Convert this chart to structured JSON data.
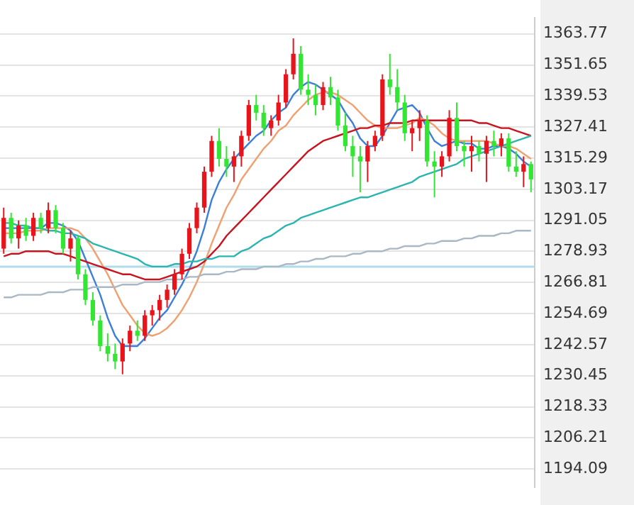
{
  "chart_data": {
    "type": "candlestick",
    "categories": [
      null,
      null,
      null,
      null,
      null,
      null,
      null,
      null,
      null,
      null,
      null,
      null,
      null,
      null,
      null,
      null,
      null,
      null,
      null,
      null,
      null,
      null,
      null,
      null,
      null,
      null,
      null,
      null,
      null,
      null,
      null,
      null,
      null,
      null,
      null,
      null,
      null,
      null,
      null,
      null,
      null,
      null,
      null,
      null,
      null,
      null,
      null,
      null,
      null,
      null,
      null,
      null,
      null,
      null,
      null,
      null,
      null,
      null,
      null,
      null,
      null,
      null,
      null,
      null,
      null,
      null,
      null,
      null,
      null,
      null,
      null,
      null
    ],
    "ohlc": [
      [
        1280,
        1296,
        1278,
        1292
      ],
      [
        1292,
        1294,
        1282,
        1284
      ],
      [
        1284,
        1291,
        1280,
        1289
      ],
      [
        1289,
        1292,
        1283,
        1285
      ],
      [
        1285,
        1294,
        1283,
        1292
      ],
      [
        1292,
        1294,
        1286,
        1288
      ],
      [
        1288,
        1298,
        1286,
        1295
      ],
      [
        1295,
        1297,
        1286,
        1288
      ],
      [
        1288,
        1290,
        1278,
        1280
      ],
      [
        1280,
        1287,
        1275,
        1284
      ],
      [
        1284,
        1285,
        1268,
        1270
      ],
      [
        1270,
        1272,
        1258,
        1260
      ],
      [
        1260,
        1263,
        1250,
        1252
      ],
      [
        1252,
        1254,
        1240,
        1242
      ],
      [
        1242,
        1247,
        1236,
        1239
      ],
      [
        1239,
        1243,
        1233,
        1236
      ],
      [
        1236,
        1245,
        1231,
        1243
      ],
      [
        1243,
        1250,
        1240,
        1248
      ],
      [
        1248,
        1252,
        1244,
        1246
      ],
      [
        1246,
        1256,
        1244,
        1254
      ],
      [
        1254,
        1258,
        1250,
        1256
      ],
      [
        1256,
        1262,
        1252,
        1260
      ],
      [
        1260,
        1266,
        1257,
        1264
      ],
      [
        1264,
        1272,
        1262,
        1270
      ],
      [
        1270,
        1280,
        1268,
        1278
      ],
      [
        1278,
        1290,
        1276,
        1288
      ],
      [
        1288,
        1298,
        1286,
        1296
      ],
      [
        1296,
        1312,
        1294,
        1310
      ],
      [
        1310,
        1324,
        1308,
        1322
      ],
      [
        1322,
        1327,
        1312,
        1315
      ],
      [
        1315,
        1320,
        1308,
        1312
      ],
      [
        1312,
        1318,
        1306,
        1316
      ],
      [
        1316,
        1326,
        1312,
        1324
      ],
      [
        1324,
        1338,
        1322,
        1336
      ],
      [
        1336,
        1340,
        1330,
        1333
      ],
      [
        1333,
        1336,
        1324,
        1327
      ],
      [
        1327,
        1332,
        1324,
        1330
      ],
      [
        1330,
        1340,
        1328,
        1337
      ],
      [
        1337,
        1350,
        1335,
        1348
      ],
      [
        1348,
        1362,
        1346,
        1356
      ],
      [
        1356,
        1359,
        1340,
        1342
      ],
      [
        1342,
        1348,
        1336,
        1340
      ],
      [
        1340,
        1344,
        1332,
        1336
      ],
      [
        1336,
        1345,
        1334,
        1343
      ],
      [
        1343,
        1347,
        1336,
        1339
      ],
      [
        1339,
        1342,
        1326,
        1328
      ],
      [
        1328,
        1333,
        1318,
        1320
      ],
      [
        1320,
        1324,
        1308,
        1316
      ],
      [
        1316,
        1320,
        1302,
        1314
      ],
      [
        1314,
        1322,
        1306,
        1320
      ],
      [
        1320,
        1326,
        1318,
        1324
      ],
      [
        1324,
        1348,
        1322,
        1346
      ],
      [
        1346,
        1356,
        1340,
        1343
      ],
      [
        1343,
        1350,
        1334,
        1337
      ],
      [
        1337,
        1340,
        1322,
        1325
      ],
      [
        1325,
        1330,
        1318,
        1327
      ],
      [
        1327,
        1334,
        1322,
        1330
      ],
      [
        1330,
        1332,
        1312,
        1314
      ],
      [
        1314,
        1318,
        1300,
        1312
      ],
      [
        1312,
        1318,
        1308,
        1316
      ],
      [
        1316,
        1334,
        1314,
        1331
      ],
      [
        1331,
        1337,
        1318,
        1320
      ],
      [
        1320,
        1322,
        1312,
        1318
      ],
      [
        1318,
        1324,
        1310,
        1320
      ],
      [
        1320,
        1322,
        1314,
        1317
      ],
      [
        1317,
        1324,
        1306,
        1322
      ],
      [
        1322,
        1326,
        1316,
        1320
      ],
      [
        1320,
        1325,
        1316,
        1323
      ],
      [
        1323,
        1325,
        1310,
        1312
      ],
      [
        1312,
        1318,
        1308,
        1310
      ],
      [
        1310,
        1316,
        1304,
        1313
      ],
      [
        1313,
        1314,
        1302,
        1307
      ]
    ],
    "colors": [
      "#e8141b",
      "#33e633",
      "#e8141b",
      "#33e633",
      "#e8141b",
      "#33e633",
      "#e8141b",
      "#33e633",
      "#33e633",
      "#e8141b",
      "#33e633",
      "#33e633",
      "#33e633",
      "#33e633",
      "#33e633",
      "#33e633",
      "#e8141b",
      "#e8141b",
      "#33e633",
      "#e8141b",
      "#e8141b",
      "#e8141b",
      "#e8141b",
      "#e8141b",
      "#e8141b",
      "#e8141b",
      "#e8141b",
      "#e8141b",
      "#e8141b",
      "#33e633",
      "#33e633",
      "#e8141b",
      "#e8141b",
      "#e8141b",
      "#33e633",
      "#33e633",
      "#e8141b",
      "#e8141b",
      "#e8141b",
      "#e8141b",
      "#33e633",
      "#33e633",
      "#33e633",
      "#e8141b",
      "#33e633",
      "#33e633",
      "#33e633",
      "#33e633",
      "#33e633",
      "#e8141b",
      "#e8141b",
      "#e8141b",
      "#33e633",
      "#33e633",
      "#33e633",
      "#e8141b",
      "#e8141b",
      "#33e633",
      "#33e633",
      "#e8141b",
      "#e8141b",
      "#33e633",
      "#33e633",
      "#e8141b",
      "#33e633",
      "#e8141b",
      "#33e633",
      "#e8141b",
      "#33e633",
      "#33e633",
      "#e8141b",
      "#33e633"
    ],
    "series": [
      {
        "type": "line",
        "color": "#a9b8c4",
        "values": [
          1261,
          1261,
          1262,
          1262,
          1262,
          1262,
          1263,
          1263,
          1263,
          1264,
          1264,
          1264,
          1265,
          1265,
          1265,
          1265,
          1266,
          1266,
          1266,
          1267,
          1267,
          1267,
          1268,
          1268,
          1268,
          1269,
          1269,
          1270,
          1270,
          1270,
          1271,
          1271,
          1272,
          1272,
          1272,
          1273,
          1273,
          1273,
          1274,
          1274,
          1275,
          1275,
          1276,
          1276,
          1277,
          1277,
          1277,
          1278,
          1278,
          1279,
          1279,
          1279,
          1280,
          1280,
          1281,
          1281,
          1281,
          1282,
          1282,
          1283,
          1283,
          1283,
          1284,
          1284,
          1285,
          1285,
          1285,
          1286,
          1286,
          1287,
          1287,
          1287
        ]
      },
      {
        "type": "line",
        "color": "#2bb5b0",
        "values": [
          1290,
          1290,
          1289,
          1289,
          1288,
          1288,
          1287,
          1287,
          1286,
          1286,
          1285,
          1284,
          1282,
          1281,
          1280,
          1279,
          1278,
          1277,
          1276,
          1274,
          1273,
          1273,
          1273,
          1274,
          1274,
          1275,
          1275,
          1276,
          1276,
          1277,
          1277,
          1277,
          1279,
          1280,
          1282,
          1284,
          1285,
          1287,
          1289,
          1290,
          1292,
          1293,
          1294,
          1295,
          1296,
          1297,
          1298,
          1299,
          1300,
          1300,
          1301,
          1302,
          1303,
          1304,
          1305,
          1306,
          1308,
          1309,
          1310,
          1311,
          1312,
          1313,
          1315,
          1316,
          1317,
          1318,
          1319,
          1320,
          1321,
          1322,
          1323,
          1324
        ]
      },
      {
        "type": "line",
        "color": "#c8141e",
        "values": [
          1277,
          1278,
          1278,
          1279,
          1279,
          1279,
          1279,
          1278,
          1278,
          1277,
          1276,
          1275,
          1274,
          1273,
          1272,
          1271,
          1270,
          1270,
          1269,
          1268,
          1268,
          1268,
          1269,
          1270,
          1271,
          1272,
          1273,
          1275,
          1278,
          1281,
          1285,
          1288,
          1291,
          1294,
          1297,
          1300,
          1303,
          1306,
          1309,
          1312,
          1315,
          1318,
          1320,
          1322,
          1323,
          1324,
          1325,
          1326,
          1327,
          1327,
          1328,
          1328,
          1329,
          1329,
          1329,
          1330,
          1330,
          1330,
          1330,
          1330,
          1330,
          1330,
          1330,
          1330,
          1329,
          1329,
          1328,
          1327,
          1327,
          1326,
          1325,
          1324
        ]
      },
      {
        "type": "line",
        "color": "#f0a070",
        "values": [
          1286,
          1286,
          1286,
          1287,
          1287,
          1287,
          1288,
          1288,
          1288,
          1288,
          1287,
          1284,
          1280,
          1275,
          1270,
          1264,
          1258,
          1254,
          1250,
          1247,
          1246,
          1247,
          1249,
          1252,
          1256,
          1261,
          1267,
          1274,
          1282,
          1289,
          1296,
          1301,
          1307,
          1311,
          1315,
          1319,
          1322,
          1326,
          1328,
          1332,
          1335,
          1338,
          1340,
          1341,
          1341,
          1340,
          1338,
          1336,
          1333,
          1330,
          1328,
          1327,
          1327,
          1327,
          1328,
          1329,
          1331,
          1330,
          1328,
          1325,
          1323,
          1322,
          1322,
          1322,
          1322,
          1322,
          1321,
          1320,
          1320,
          1319,
          1317,
          1315
        ]
      },
      {
        "type": "line",
        "color": "#3a7fd8",
        "values": [
          1288,
          1288,
          1288,
          1288,
          1288,
          1288,
          1290,
          1290,
          1289,
          1287,
          1283,
          1276,
          1269,
          1262,
          1253,
          1246,
          1242,
          1242,
          1242,
          1245,
          1249,
          1253,
          1256,
          1261,
          1266,
          1272,
          1279,
          1288,
          1299,
          1306,
          1311,
          1315,
          1318,
          1321,
          1324,
          1326,
          1330,
          1333,
          1335,
          1340,
          1343,
          1345,
          1344,
          1342,
          1340,
          1338,
          1333,
          1329,
          1323,
          1320,
          1320,
          1324,
          1329,
          1334,
          1335,
          1336,
          1333,
          1327,
          1322,
          1320,
          1321,
          1322,
          1321,
          1321,
          1319,
          1319,
          1320,
          1320,
          1319,
          1317,
          1314,
          1312
        ]
      }
    ],
    "ylim": [
      1187,
      1370
    ],
    "yticks": [
      1194.09,
      1206.21,
      1218.33,
      1230.45,
      1242.57,
      1254.69,
      1266.81,
      1278.93,
      1291.05,
      1303.17,
      1315.29,
      1327.41,
      1339.53,
      1351.65,
      1363.77
    ],
    "ref_lines": [
      {
        "axis": "y",
        "value": 1273,
        "color": "#b0dce8"
      }
    ],
    "grid": "y",
    "legend": false,
    "tick_labels": "y",
    "marker": "none",
    "line_style": "solid"
  }
}
